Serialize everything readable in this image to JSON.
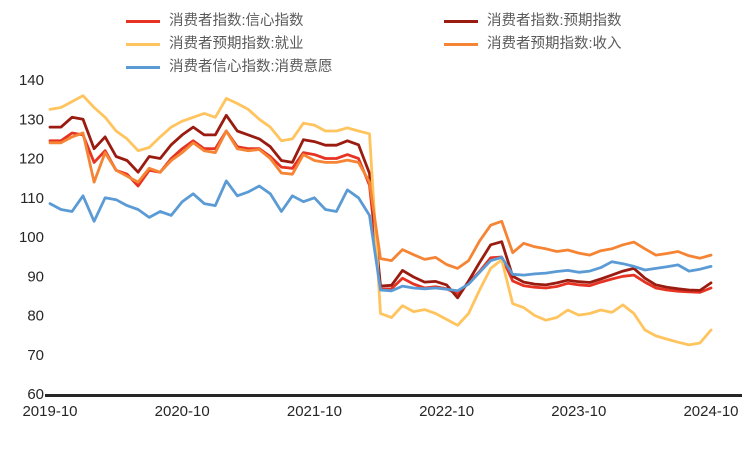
{
  "chart_data": {
    "type": "line",
    "title": "",
    "xlabel": "",
    "ylabel": "",
    "grid": false,
    "legend_position": "top",
    "ylim": [
      60,
      140
    ],
    "y_ticks": [
      60,
      70,
      80,
      90,
      100,
      110,
      120,
      130,
      140
    ],
    "x_tick_labels": [
      "2019-10",
      "2020-10",
      "2021-10",
      "2022-10",
      "2023-10",
      "2024-10"
    ],
    "x_tick_month_index": [
      0,
      12,
      24,
      36,
      48,
      60
    ],
    "x": [
      "2019-10",
      "2019-11",
      "2019-12",
      "2020-01",
      "2020-02",
      "2020-03",
      "2020-04",
      "2020-05",
      "2020-06",
      "2020-07",
      "2020-08",
      "2020-09",
      "2020-10",
      "2020-11",
      "2020-12",
      "2021-01",
      "2021-02",
      "2021-03",
      "2021-04",
      "2021-05",
      "2021-06",
      "2021-07",
      "2021-08",
      "2021-09",
      "2021-10",
      "2021-11",
      "2021-12",
      "2022-01",
      "2022-02",
      "2022-03",
      "2022-04",
      "2022-05",
      "2022-06",
      "2022-07",
      "2022-08",
      "2022-09",
      "2022-10",
      "2022-11",
      "2022-12",
      "2023-01",
      "2023-02",
      "2023-03",
      "2023-04",
      "2023-05",
      "2023-06",
      "2023-07",
      "2023-08",
      "2023-09",
      "2023-10",
      "2023-11",
      "2023-12",
      "2024-01",
      "2024-02",
      "2024-03",
      "2024-04",
      "2024-05",
      "2024-06",
      "2024-07",
      "2024-08",
      "2024-09",
      "2024-10"
    ],
    "series": [
      {
        "name": "消费者指数:信心指数",
        "color": "#E63323",
        "values": [
          124.5,
          124.5,
          126.5,
          126.0,
          119.0,
          122.0,
          117.0,
          116.0,
          113.0,
          117.0,
          116.5,
          120.0,
          122.5,
          124.5,
          122.5,
          122.5,
          127.0,
          123.0,
          122.5,
          122.5,
          120.5,
          117.8,
          117.5,
          121.5,
          121.0,
          120.0,
          120.0,
          121.0,
          120.0,
          113.2,
          86.7,
          86.8,
          89.5,
          88.0,
          87.0,
          87.3,
          86.8,
          85.5,
          88.3,
          91.2,
          94.7,
          94.9,
          88.8,
          87.6,
          87.2,
          87.0,
          87.4,
          88.2,
          87.8,
          87.6,
          88.5,
          89.3,
          90.0,
          90.3,
          88.5,
          87.0,
          86.5,
          86.2,
          86.0,
          85.9,
          87.0
        ]
      },
      {
        "name": "消费者指数:预期指数",
        "color": "#9A1B10",
        "values": [
          128.0,
          128.0,
          130.5,
          130.0,
          122.5,
          125.5,
          120.5,
          119.5,
          116.5,
          120.5,
          120.0,
          123.5,
          126.0,
          128.0,
          126.0,
          126.0,
          131.0,
          127.0,
          126.0,
          125.0,
          123.0,
          119.5,
          119.0,
          124.8,
          124.3,
          123.4,
          123.4,
          124.5,
          123.5,
          116.2,
          87.5,
          87.7,
          91.5,
          89.8,
          88.5,
          88.7,
          87.8,
          84.5,
          88.8,
          93.5,
          98.0,
          98.8,
          90.0,
          88.5,
          88.0,
          87.8,
          88.3,
          89.0,
          88.6,
          88.4,
          89.3,
          90.3,
          91.3,
          92.0,
          89.5,
          87.8,
          87.2,
          86.8,
          86.5,
          86.4,
          88.3
        ]
      },
      {
        "name": "消费者预期指数:就业",
        "color": "#FFC45E",
        "values": [
          132.5,
          133.0,
          134.5,
          136.0,
          133.0,
          130.5,
          127.0,
          125.0,
          122.0,
          122.8,
          125.5,
          128.0,
          129.5,
          130.5,
          131.5,
          130.5,
          135.3,
          134.0,
          132.5,
          130.0,
          128.0,
          124.5,
          125.0,
          129.0,
          128.5,
          127.0,
          127.0,
          127.8,
          127.0,
          126.3,
          80.5,
          79.5,
          82.5,
          81.0,
          81.5,
          80.5,
          79.0,
          77.5,
          80.5,
          86.5,
          92.0,
          94.2,
          83.0,
          82.0,
          80.0,
          78.8,
          79.5,
          81.4,
          80.1,
          80.5,
          81.4,
          80.8,
          82.7,
          80.5,
          76.3,
          74.8,
          74.0,
          73.2,
          72.5,
          73.0,
          76.3
        ]
      },
      {
        "name": "消费者预期指数:收入",
        "color": "#F58434",
        "values": [
          124.0,
          124.0,
          125.5,
          126.5,
          114.0,
          121.5,
          117.0,
          115.5,
          114.0,
          117.5,
          116.5,
          119.5,
          121.5,
          124.0,
          122.0,
          121.5,
          127.0,
          122.5,
          122.0,
          122.3,
          120.0,
          116.3,
          116.0,
          121.0,
          119.5,
          119.0,
          119.0,
          119.6,
          119.0,
          114.0,
          94.5,
          94.0,
          96.8,
          95.5,
          94.3,
          94.8,
          93.0,
          92.0,
          94.0,
          99.0,
          103.0,
          104.0,
          96.0,
          98.4,
          97.5,
          97.0,
          96.3,
          96.7,
          95.9,
          95.4,
          96.5,
          97.0,
          98.0,
          98.7,
          97.0,
          95.4,
          95.8,
          96.3,
          95.2,
          94.6,
          95.4
        ]
      },
      {
        "name": "消费者信心指数:消费意愿",
        "color": "#5B9BD5",
        "values": [
          108.5,
          107.0,
          106.5,
          110.5,
          104.0,
          110.0,
          109.5,
          108.0,
          107.0,
          105.0,
          106.5,
          105.5,
          109.0,
          111.0,
          108.5,
          108.0,
          114.3,
          110.5,
          111.5,
          113.0,
          111.0,
          106.5,
          110.5,
          109.0,
          110.0,
          107.0,
          106.5,
          112.0,
          110.0,
          105.5,
          86.5,
          86.3,
          87.5,
          87.0,
          86.8,
          87.0,
          86.7,
          86.3,
          88.0,
          91.0,
          94.0,
          94.8,
          90.5,
          90.3,
          90.6,
          90.8,
          91.2,
          91.5,
          91.0,
          91.3,
          92.2,
          93.7,
          93.2,
          92.5,
          91.6,
          92.0,
          92.4,
          92.9,
          91.3,
          91.8,
          92.5
        ]
      }
    ],
    "style": {
      "axis_line_color": "#262626",
      "tick_label_color": "#262626",
      "legend_text_color": "#5a5a5a",
      "background": "#ffffff"
    }
  }
}
